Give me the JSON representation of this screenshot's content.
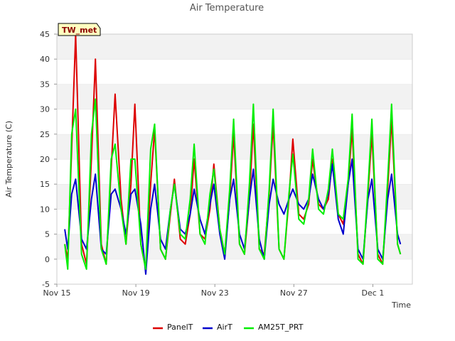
{
  "chart_data": {
    "type": "line",
    "title": "Air Temperature",
    "xlabel": "Time",
    "ylabel": "Air Temperature (C)",
    "station_label": "TW_met",
    "ylim": [
      -5,
      45
    ],
    "yticks": [
      -5,
      0,
      5,
      10,
      15,
      20,
      25,
      30,
      35,
      40,
      45
    ],
    "xlim_days": [
      0,
      18
    ],
    "xticks": [
      {
        "day": 0,
        "label": "Nov 15"
      },
      {
        "day": 4,
        "label": "Nov 19"
      },
      {
        "day": 8,
        "label": "Nov 23"
      },
      {
        "day": 12,
        "label": "Nov 27"
      },
      {
        "day": 16,
        "label": "Dec 1"
      }
    ],
    "grid": "horizontal bands",
    "legend_position": "bottom",
    "series": [
      {
        "name": "PanelT",
        "color": "#dd0000",
        "x": [
          0.4,
          0.55,
          0.75,
          0.95,
          1.25,
          1.5,
          1.75,
          1.95,
          2.25,
          2.5,
          2.75,
          2.95,
          3.25,
          3.5,
          3.75,
          3.95,
          4.25,
          4.5,
          4.75,
          4.95,
          5.25,
          5.5,
          5.75,
          5.95,
          6.25,
          6.5,
          6.75,
          6.95,
          7.25,
          7.5,
          7.75,
          7.95,
          8.25,
          8.5,
          8.75,
          8.95,
          9.25,
          9.5,
          9.75,
          9.95,
          10.25,
          10.5,
          10.75,
          10.95,
          11.25,
          11.5,
          11.75,
          11.95,
          12.25,
          12.5,
          12.75,
          12.95,
          13.25,
          13.5,
          13.75,
          13.95,
          14.25,
          14.5,
          14.75,
          14.95,
          15.25,
          15.5,
          15.75,
          15.95,
          16.25,
          16.5,
          16.75,
          16.95,
          17.25,
          17.4
        ],
        "y": [
          3,
          0,
          22,
          45,
          3,
          -1,
          20,
          40,
          3,
          -1,
          18,
          33,
          12,
          3,
          15,
          31,
          3,
          -2,
          15,
          26,
          2,
          0,
          9,
          16,
          4,
          3,
          9,
          20,
          5,
          4,
          10,
          19,
          6,
          1,
          12,
          25,
          3,
          1,
          12,
          27,
          2,
          1,
          13,
          27,
          2,
          0,
          12,
          24,
          9,
          8,
          11,
          20,
          11,
          10,
          12,
          20,
          9,
          7,
          15,
          26,
          1,
          -1,
          13,
          25,
          1,
          -1,
          14,
          28,
          3,
          1
        ]
      },
      {
        "name": "AirT",
        "color": "#0000cc",
        "x": [
          0.4,
          0.55,
          0.75,
          0.95,
          1.25,
          1.5,
          1.75,
          1.95,
          2.25,
          2.5,
          2.75,
          2.95,
          3.25,
          3.5,
          3.75,
          3.95,
          4.25,
          4.5,
          4.75,
          4.95,
          5.25,
          5.5,
          5.75,
          5.95,
          6.25,
          6.5,
          6.75,
          6.95,
          7.25,
          7.5,
          7.75,
          7.95,
          8.25,
          8.5,
          8.75,
          8.95,
          9.25,
          9.5,
          9.75,
          9.95,
          10.25,
          10.5,
          10.75,
          10.95,
          11.25,
          11.5,
          11.75,
          11.95,
          12.25,
          12.5,
          12.75,
          12.95,
          13.25,
          13.5,
          13.75,
          13.95,
          14.25,
          14.5,
          14.75,
          14.95,
          15.25,
          15.5,
          15.75,
          15.95,
          16.25,
          16.5,
          16.75,
          16.95,
          17.25,
          17.4
        ],
        "y": [
          6,
          2,
          13,
          16,
          4,
          2,
          12,
          17,
          2,
          1,
          13,
          14,
          10,
          5,
          13,
          14,
          7,
          -3,
          10,
          15,
          4,
          2,
          10,
          15,
          6,
          5,
          9,
          14,
          8,
          5,
          11,
          15,
          5,
          0,
          12,
          16,
          5,
          2,
          12,
          18,
          4,
          0,
          11,
          16,
          11,
          9,
          12,
          14,
          11,
          10,
          12,
          17,
          12,
          10,
          13,
          19,
          8,
          5,
          15,
          20,
          2,
          0,
          12,
          16,
          2,
          0,
          12,
          17,
          5,
          3
        ]
      },
      {
        "name": "AM25T_PRT",
        "color": "#00ee00",
        "x": [
          0.4,
          0.55,
          0.75,
          0.95,
          1.25,
          1.5,
          1.75,
          1.95,
          2.25,
          2.5,
          2.75,
          2.95,
          3.25,
          3.5,
          3.75,
          3.95,
          4.25,
          4.5,
          4.75,
          4.95,
          5.25,
          5.5,
          5.75,
          5.95,
          6.25,
          6.5,
          6.75,
          6.95,
          7.25,
          7.5,
          7.75,
          7.95,
          8.25,
          8.5,
          8.75,
          8.95,
          9.25,
          9.5,
          9.75,
          9.95,
          10.25,
          10.5,
          10.75,
          10.95,
          11.25,
          11.5,
          11.75,
          11.95,
          12.25,
          12.5,
          12.75,
          12.95,
          13.25,
          13.5,
          13.75,
          13.95,
          14.25,
          14.5,
          14.75,
          14.95,
          15.25,
          15.5,
          15.75,
          15.95,
          16.25,
          16.5,
          16.75,
          16.95,
          17.25,
          17.4
        ],
        "y": [
          3,
          -2,
          25,
          30,
          1,
          -2,
          25,
          32,
          2,
          -1,
          20,
          23,
          10,
          3,
          20,
          20,
          3,
          -2,
          22,
          27,
          2,
          0,
          10,
          15,
          5,
          4,
          12,
          23,
          5,
          3,
          13,
          18,
          6,
          1,
          14,
          28,
          3,
          1,
          15,
          31,
          2,
          0,
          14,
          30,
          2,
          0,
          13,
          21,
          8,
          7,
          12,
          22,
          10,
          9,
          14,
          22,
          9,
          8,
          16,
          29,
          0,
          -1,
          14,
          28,
          0,
          -1,
          16,
          31,
          3,
          1
        ]
      }
    ]
  }
}
